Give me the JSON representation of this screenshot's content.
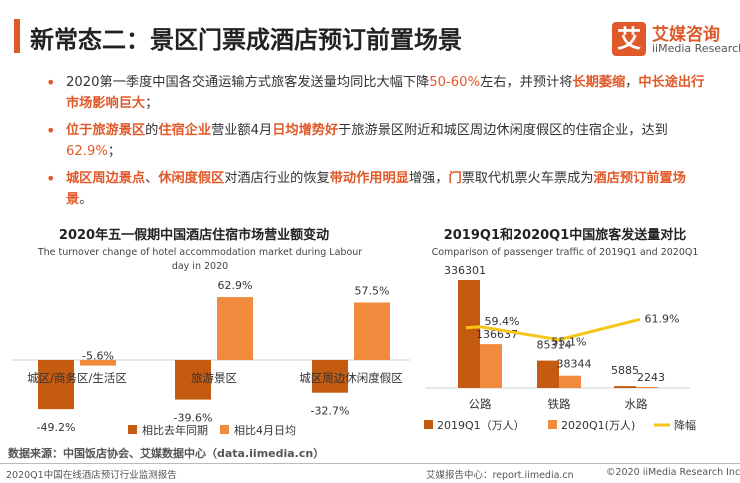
{
  "page_title": "新常态二：景区门票成酒店预订前置场景",
  "logo": {
    "cn": "艾媒咨询",
    "en": "iiMedia Research",
    "glyph": "艾"
  },
  "bullets": [
    {
      "parts": [
        {
          "t": "2020第一季度中国各交通运输方式旅客发送量均同比大幅下降",
          "s": "n"
        },
        {
          "t": "50-60%",
          "s": "v"
        },
        {
          "t": "左右，并预计将",
          "s": "n"
        },
        {
          "t": "长期萎缩",
          "s": "h"
        },
        {
          "t": "，",
          "s": "n"
        },
        {
          "t": "中长途出行市场影响巨大",
          "s": "h"
        },
        {
          "t": "；",
          "s": "n"
        }
      ]
    },
    {
      "parts": [
        {
          "t": "位于旅游景区",
          "s": "h"
        },
        {
          "t": "的",
          "s": "n"
        },
        {
          "t": "住宿企业",
          "s": "h"
        },
        {
          "t": "营业额4月",
          "s": "n"
        },
        {
          "t": "日均增势好",
          "s": "h"
        },
        {
          "t": "于旅游景区附近和城区周边休闲度假区的住宿企业，达到",
          "s": "n"
        },
        {
          "t": "62.9%",
          "s": "v"
        },
        {
          "t": "；",
          "s": "n"
        }
      ]
    },
    {
      "parts": [
        {
          "t": "城区周边景点",
          "s": "h"
        },
        {
          "t": "、",
          "s": "n"
        },
        {
          "t": "休闲度假区",
          "s": "h"
        },
        {
          "t": "对酒店行业的恢复",
          "s": "n"
        },
        {
          "t": "带动作用明显",
          "s": "h"
        },
        {
          "t": "增强，",
          "s": "n"
        },
        {
          "t": "门",
          "s": "h"
        },
        {
          "t": "票取代机票火车票成为",
          "s": "n"
        },
        {
          "t": "酒店预订前置场景",
          "s": "h"
        },
        {
          "t": "。",
          "s": "n"
        }
      ]
    }
  ],
  "chart_data": [
    {
      "type": "bar",
      "title": "2020年五一假期中国酒店住宿市场营业额变动",
      "subtitle": "The turnover change of hotel accommodation market during Labour day in 2020",
      "categories": [
        "城区/商务区/生活区",
        "旅游景区",
        "城区周边休闲度假区"
      ],
      "series": [
        {
          "name": "相比去年同期",
          "values": [
            -49.2,
            -39.6,
            -32.7
          ],
          "color": "#c55a11"
        },
        {
          "name": "相比4月日均",
          "values": [
            -5.6,
            62.9,
            57.5
          ],
          "color": "#f08a3c"
        }
      ],
      "value_labels": [
        [
          "-49.2%",
          "-39.6%",
          "-32.7%"
        ],
        [
          "-5.6%",
          "62.9%",
          "57.5%"
        ]
      ],
      "legend": "bottom"
    },
    {
      "type": "bar",
      "title": "2019Q1和2020Q1中国旅客发送量对比",
      "subtitle": "Comparison of passenger traffic of 2019Q1 and 2020Q1",
      "categories": [
        "公路",
        "铁路",
        "水路"
      ],
      "series": [
        {
          "name": "2019Q1（万人）",
          "values": [
            336301,
            85314,
            5885
          ],
          "color": "#c55a11"
        },
        {
          "name": "2020Q1(万人)",
          "values": [
            136637,
            38344,
            2243
          ],
          "color": "#f08a3c"
        }
      ],
      "line_series": {
        "name": "降幅",
        "values": [
          59.4,
          55.1,
          61.9
        ],
        "labels": [
          "59.4%",
          "55.1%",
          "61.9%"
        ],
        "color": "#f5c518"
      },
      "legend": "bottom"
    }
  ],
  "source": "数据来源：中国饭店协会、艾媒数据中心（data.iimedia.cn）",
  "footer": {
    "left": "2020Q1中国在线酒店预订行业监测报告",
    "center": "艾媒报告中心：report.iimedia.cn",
    "right": "©2020  iiMedia Research  Inc"
  }
}
